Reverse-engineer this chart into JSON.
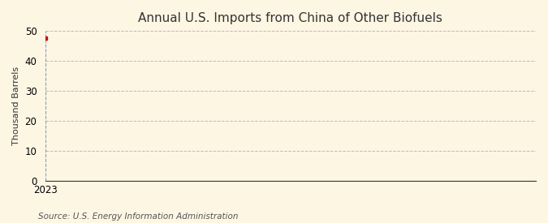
{
  "title": "Annual U.S. Imports from China of Other Biofuels",
  "ylabel": "Thousand Barrels",
  "source": "Source: U.S. Energy Information Administration",
  "x_values": [
    2023
  ],
  "y_values": [
    47.5
  ],
  "ylim": [
    0,
    50
  ],
  "yticks": [
    0,
    10,
    20,
    30,
    40,
    50
  ],
  "xlim": [
    2023,
    2030
  ],
  "xticks": [
    2023
  ],
  "marker_color": "#cc0000",
  "marker": "s",
  "marker_size": 3,
  "vline_color": "#8899bb",
  "vline_style": "--",
  "grid_color": "#bbbbbb",
  "grid_style": "--",
  "background_color": "#fdf6e3",
  "title_fontsize": 11,
  "axis_label_fontsize": 8,
  "tick_fontsize": 8.5,
  "source_fontsize": 7.5
}
